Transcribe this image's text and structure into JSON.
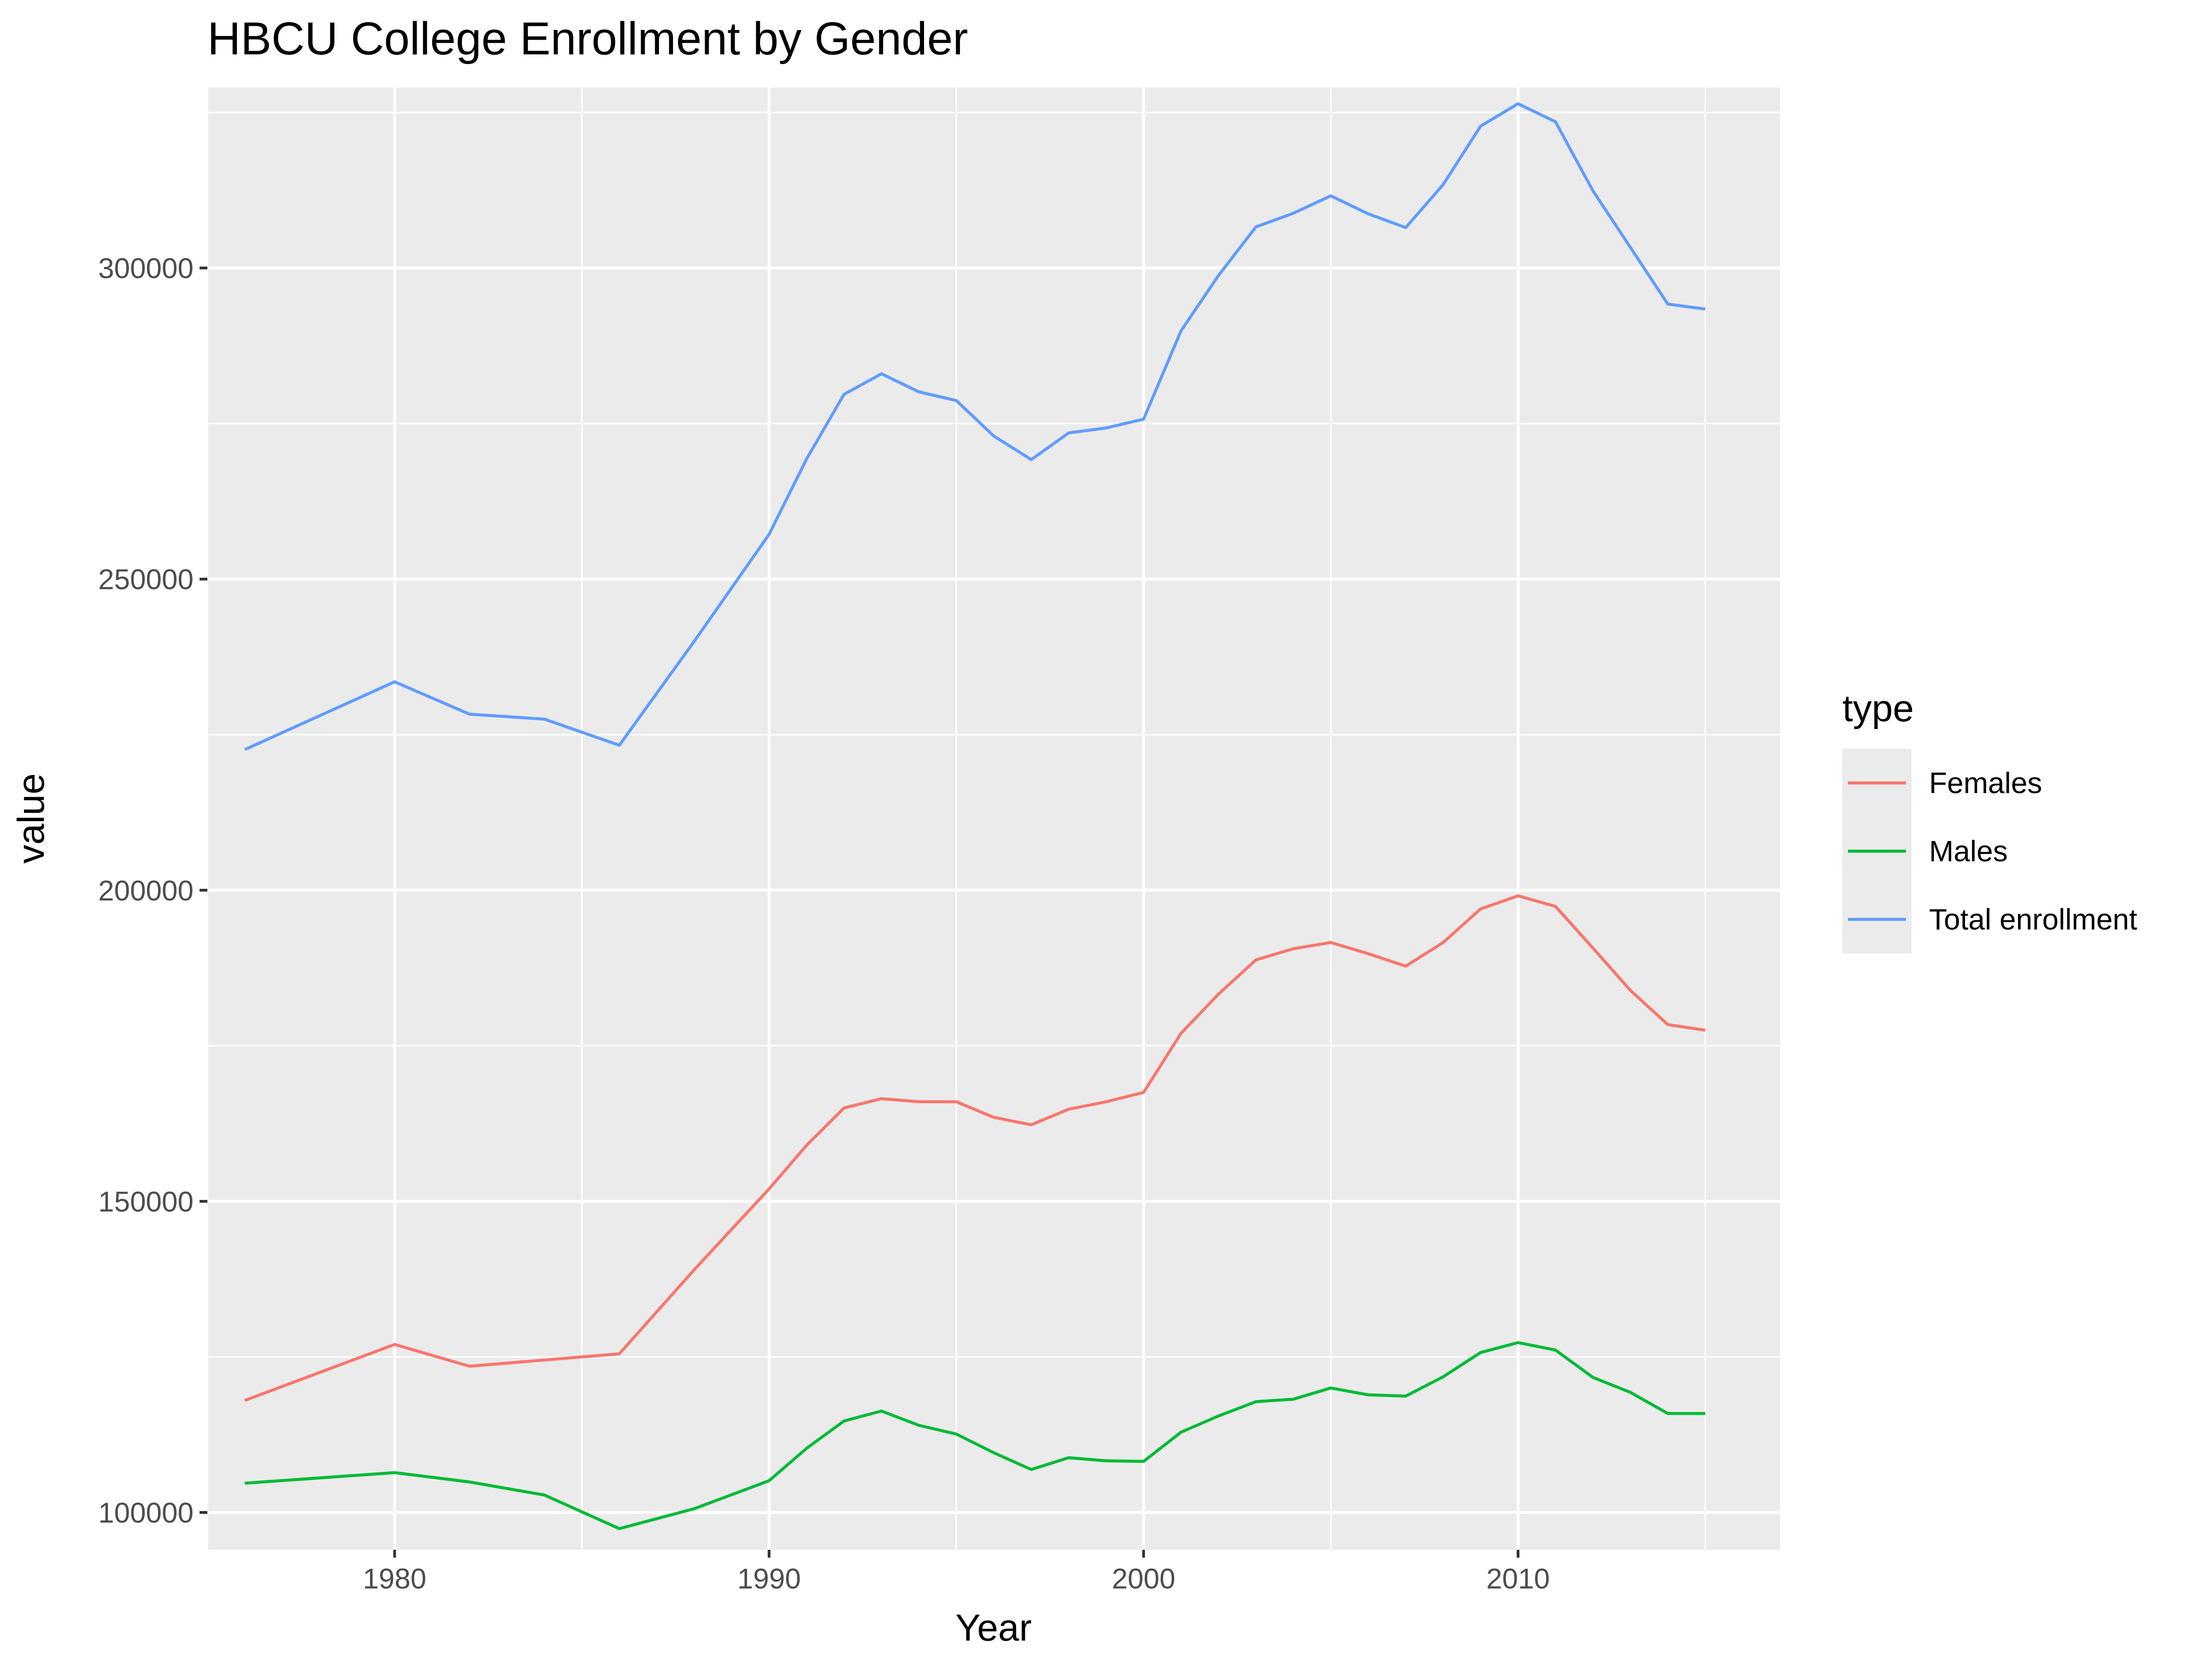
{
  "chart_data": {
    "type": "line",
    "title": "HBCU College Enrollment by Gender",
    "xlabel": "Year",
    "ylabel": "value",
    "xlim": [
      1975,
      2017
    ],
    "ylim": [
      94000,
      329000
    ],
    "x_ticks": [
      1980,
      1990,
      2000,
      2010
    ],
    "x_minor": [
      1975,
      1985,
      1995,
      2005,
      2015
    ],
    "y_ticks": [
      100000,
      150000,
      200000,
      250000,
      300000
    ],
    "y_minor": [
      125000,
      175000,
      225000,
      275000,
      325000
    ],
    "x_tick_labels": [
      "1980",
      "1990",
      "2000",
      "2010"
    ],
    "y_tick_labels": [
      "100000",
      "150000",
      "200000",
      "250000",
      "300000"
    ],
    "grid": true,
    "legend": {
      "title": "type",
      "position": "right"
    },
    "x": [
      1976,
      1980,
      1982,
      1984,
      1986,
      1988,
      1990,
      1991,
      1992,
      1993,
      1994,
      1995,
      1996,
      1997,
      1998,
      1999,
      2000,
      2001,
      2002,
      2003,
      2004,
      2005,
      2006,
      2007,
      2008,
      2009,
      2010,
      2011,
      2012,
      2013,
      2014,
      2015
    ],
    "series": [
      {
        "name": "Females",
        "color": "#F8766D",
        "values": [
          118000,
          127000,
          123500,
          124500,
          125500,
          139000,
          152000,
          159000,
          165000,
          166500,
          166000,
          166000,
          163500,
          162300,
          164800,
          166000,
          167500,
          177000,
          183300,
          188800,
          190600,
          191600,
          189800,
          187800,
          191600,
          197000,
          199100,
          197400,
          190700,
          183900,
          178400,
          177500
        ]
      },
      {
        "name": "Males",
        "color": "#00BA38",
        "values": [
          104700,
          106400,
          104900,
          102800,
          97400,
          100600,
          105100,
          110300,
          114700,
          116300,
          114000,
          112600,
          109600,
          106900,
          108800,
          108300,
          108200,
          112900,
          115500,
          117800,
          118200,
          120000,
          118900,
          118700,
          121800,
          125700,
          127300,
          126100,
          121700,
          119300,
          115900,
          115900
        ]
      },
      {
        "name": "Total enrollment",
        "color": "#619CFF",
        "values": [
          222600,
          233500,
          228300,
          227500,
          223300,
          240000,
          257200,
          269300,
          279700,
          283000,
          280100,
          278700,
          273000,
          269200,
          273500,
          274300,
          275700,
          289900,
          298800,
          306600,
          308800,
          311600,
          308700,
          306500,
          313400,
          322800,
          326400,
          323500,
          312400,
          303300,
          294200,
          293400
        ]
      }
    ]
  }
}
